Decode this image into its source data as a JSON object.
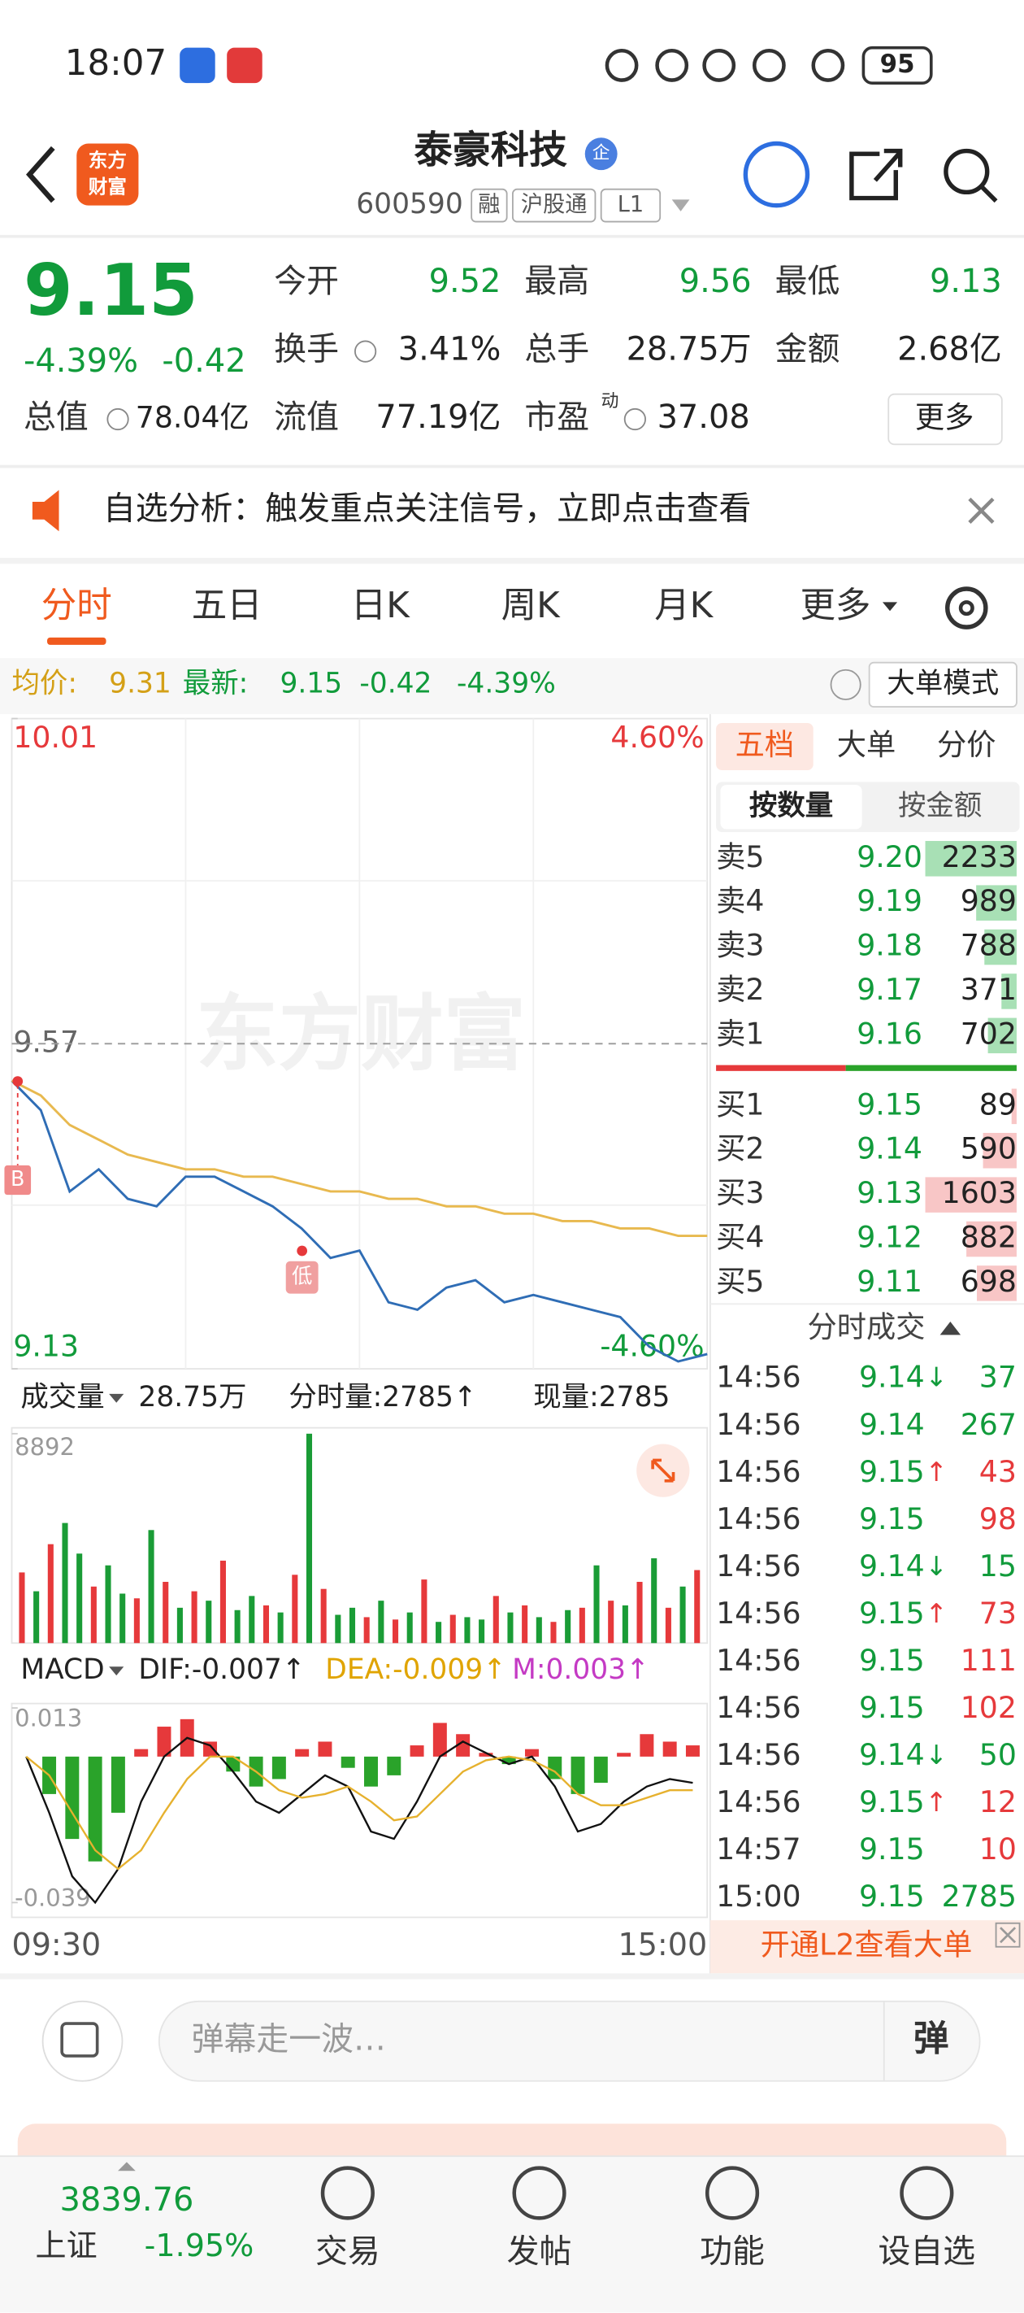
{
  "status_bar": {
    "time": "18:07",
    "battery": "95"
  },
  "header": {
    "logo": [
      "东方",
      "财富"
    ],
    "title": "泰豪科技",
    "badge": "企",
    "code": "600590",
    "tags": [
      "融",
      "沪股通",
      "L1"
    ]
  },
  "quote": {
    "price": "9.15",
    "change_pct": "-4.39%",
    "change": "-0.42",
    "stats": [
      {
        "label": "今开",
        "value": "9.52"
      },
      {
        "label": "最高",
        "value": "9.56"
      },
      {
        "label": "最低",
        "value": "9.13"
      },
      {
        "label": "换手",
        "value": "3.41%"
      },
      {
        "label": "总手",
        "value": "28.75万"
      },
      {
        "label": "金额",
        "value": "2.68亿"
      },
      {
        "label": "总值",
        "value": "78.04亿"
      },
      {
        "label": "流值",
        "value": "77.19亿"
      },
      {
        "label": "市盈",
        "sup": "动",
        "value": "37.08"
      }
    ],
    "more": "更多"
  },
  "banner": {
    "text": "自选分析：触发重点关注信号，立即点击查看"
  },
  "tabs": [
    "分时",
    "五日",
    "日K",
    "周K",
    "月K",
    "更多"
  ],
  "info": {
    "avg_label": "均价:",
    "avg": "9.31",
    "last_label": "最新:",
    "last": "9.15",
    "change": "-0.42",
    "change_pct": "-4.39%",
    "button": "大单模式"
  },
  "watermark": "东方财富",
  "chart_data": [
    {
      "type": "line",
      "ylim": [
        9.13,
        10.01
      ],
      "yticks": [
        10.01,
        9.57,
        9.13
      ],
      "pct_labels": [
        "4.60%",
        "-4.60%"
      ],
      "xlabels": [
        "09:30",
        "15:00"
      ],
      "markers": [
        "B",
        "低"
      ],
      "series": [
        {
          "color": "#2f6db5",
          "values": [
            9.52,
            9.48,
            9.37,
            9.4,
            9.36,
            9.35,
            9.39,
            9.39,
            9.37,
            9.35,
            9.32,
            9.28,
            9.29,
            9.22,
            9.21,
            9.24,
            9.25,
            9.22,
            9.23,
            9.22,
            9.21,
            9.2,
            9.16,
            9.14,
            9.15
          ]
        },
        {
          "color": "#e8b94f",
          "values": [
            9.52,
            9.5,
            9.46,
            9.44,
            9.42,
            9.41,
            9.4,
            9.4,
            9.39,
            9.39,
            9.38,
            9.37,
            9.37,
            9.36,
            9.36,
            9.35,
            9.35,
            9.34,
            9.34,
            9.33,
            9.33,
            9.32,
            9.32,
            9.31,
            9.31
          ]
        }
      ]
    },
    {
      "type": "bar",
      "title": "成交量",
      "total": "28.75万",
      "period_vol": "分时量:2785↑",
      "current": "现量:2785",
      "ylim": [
        0,
        8892
      ],
      "yticks": [
        8892
      ],
      "colors": {
        "up": "#e6393b",
        "down": "#1a9c36"
      },
      "values": [
        3000,
        2200,
        4200,
        5100,
        3800,
        2400,
        3300,
        2100,
        1900,
        4800,
        2600,
        1500,
        2200,
        1800,
        3500,
        1400,
        2000,
        1600,
        1300,
        2900,
        8892,
        2300,
        1200,
        1500,
        1100,
        1800,
        1000,
        1300,
        2700,
        900,
        1200,
        1100,
        1000,
        2000,
        1300,
        1600,
        1100,
        900,
        1400,
        1500,
        3300,
        1800,
        1600,
        2600,
        3600,
        1500,
        2400,
        3100
      ],
      "sides": [
        "up",
        "down",
        "up",
        "down",
        "down",
        "up",
        "down",
        "down",
        "up",
        "down",
        "up",
        "down",
        "up",
        "down",
        "up",
        "down",
        "down",
        "up",
        "down",
        "up",
        "down",
        "up",
        "down",
        "down",
        "up",
        "down",
        "up",
        "down",
        "up",
        "down",
        "up",
        "down",
        "down",
        "up",
        "down",
        "up",
        "down",
        "up",
        "down",
        "up",
        "down",
        "up",
        "down",
        "up",
        "down",
        "up",
        "down",
        "up"
      ]
    },
    {
      "type": "macd",
      "title": "MACD",
      "ylim": [
        -0.039,
        0.013
      ],
      "yticks": [
        0.013,
        -0.039
      ],
      "legend": [
        {
          "name": "DIF:-0.007↑",
          "color": "#222222"
        },
        {
          "name": "DEA:-0.009↑",
          "color": "#e0a400"
        },
        {
          "name": "M:0.003↑",
          "color": "#c43ac4"
        }
      ],
      "histogram": [
        0.0,
        -0.01,
        -0.022,
        -0.028,
        -0.015,
        0.002,
        0.008,
        0.01,
        0.004,
        -0.004,
        -0.008,
        -0.006,
        0.002,
        0.004,
        -0.003,
        -0.008,
        -0.005,
        0.003,
        0.009,
        0.006,
        0.001,
        -0.002,
        0.002,
        -0.006,
        -0.01,
        -0.007,
        0.001,
        0.006,
        0.004,
        0.003
      ],
      "series": [
        {
          "color": "#111111",
          "values": [
            0.0,
            -0.015,
            -0.032,
            -0.039,
            -0.03,
            -0.012,
            0.0,
            0.005,
            0.003,
            -0.004,
            -0.012,
            -0.015,
            -0.01,
            -0.005,
            -0.008,
            -0.02,
            -0.022,
            -0.012,
            0.0,
            0.004,
            0.001,
            -0.002,
            0.0,
            -0.008,
            -0.02,
            -0.018,
            -0.012,
            -0.008,
            -0.006,
            -0.007
          ]
        },
        {
          "color": "#e6b12e",
          "values": [
            0.0,
            -0.005,
            -0.015,
            -0.025,
            -0.03,
            -0.025,
            -0.015,
            -0.006,
            0.0,
            0.0,
            -0.004,
            -0.009,
            -0.011,
            -0.01,
            -0.008,
            -0.012,
            -0.017,
            -0.016,
            -0.01,
            -0.004,
            -0.001,
            0.0,
            -0.001,
            -0.004,
            -0.01,
            -0.013,
            -0.013,
            -0.011,
            -0.009,
            -0.009
          ]
        }
      ]
    }
  ],
  "order_book": {
    "tabs": [
      "五档",
      "大单",
      "分价"
    ],
    "subtabs": [
      "按数量",
      "按金额"
    ],
    "asks": [
      {
        "label": "卖5",
        "price": "9.20",
        "volume": 2233
      },
      {
        "label": "卖4",
        "price": "9.19",
        "volume": 989
      },
      {
        "label": "卖3",
        "price": "9.18",
        "volume": 788
      },
      {
        "label": "卖2",
        "price": "9.17",
        "volume": 371
      },
      {
        "label": "卖1",
        "price": "9.16",
        "volume": 702
      }
    ],
    "bids": [
      {
        "label": "买1",
        "price": "9.15",
        "volume": 89
      },
      {
        "label": "买2",
        "price": "9.14",
        "volume": 590
      },
      {
        "label": "买3",
        "price": "9.13",
        "volume": 1603
      },
      {
        "label": "买4",
        "price": "9.12",
        "volume": 882
      },
      {
        "label": "买5",
        "price": "9.11",
        "volume": 698
      }
    ],
    "trades_title": "分时成交",
    "trades": [
      {
        "time": "14:56",
        "price": "9.14",
        "arrow": "↓",
        "volume": "37",
        "side": "sell"
      },
      {
        "time": "14:56",
        "price": "9.14",
        "volume": "267",
        "side": "sell"
      },
      {
        "time": "14:56",
        "price": "9.15",
        "arrow": "↑",
        "volume": "43",
        "side": "buy"
      },
      {
        "time": "14:56",
        "price": "9.15",
        "volume": "98",
        "side": "buy"
      },
      {
        "time": "14:56",
        "price": "9.14",
        "arrow": "↓",
        "volume": "15",
        "side": "sell"
      },
      {
        "time": "14:56",
        "price": "9.15",
        "arrow": "↑",
        "volume": "73",
        "side": "buy"
      },
      {
        "time": "14:56",
        "price": "9.15",
        "volume": "111",
        "side": "buy"
      },
      {
        "time": "14:56",
        "price": "9.15",
        "volume": "102",
        "side": "buy"
      },
      {
        "time": "14:56",
        "price": "9.14",
        "arrow": "↓",
        "volume": "50",
        "side": "sell"
      },
      {
        "time": "14:56",
        "price": "9.15",
        "arrow": "↑",
        "volume": "12",
        "side": "buy"
      },
      {
        "time": "14:57",
        "price": "9.15",
        "volume": "10",
        "side": "buy"
      },
      {
        "time": "15:00",
        "price": "9.15",
        "volume": "2785",
        "side": "sell"
      }
    ],
    "l2": "开通L2查看大单"
  },
  "comment": {
    "placeholder": "弹幕走一波…",
    "button": "弹"
  },
  "nav": {
    "index_value": "3839.76",
    "index_name": "上证",
    "index_change": "-1.95%",
    "items": [
      "交易",
      "发帖",
      "功能",
      "设自选"
    ]
  }
}
